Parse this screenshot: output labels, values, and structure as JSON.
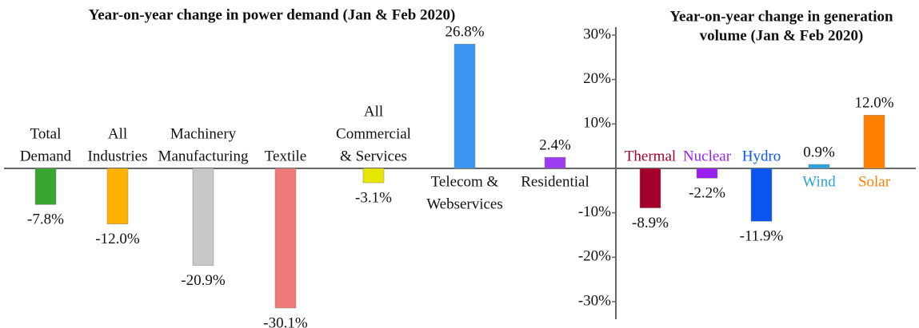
{
  "chart_data": [
    {
      "type": "bar",
      "title": [
        "Year-on-year change in power demand (Jan & Feb 2020)"
      ],
      "categories": [
        [
          "Total",
          "Demand"
        ],
        [
          "All",
          "Industries"
        ],
        [
          "Machinery",
          "Manufacturing"
        ],
        [
          "Textile"
        ],
        [
          "All",
          "Commercial",
          "& Services"
        ],
        [
          "Telecom &",
          "Webservices"
        ],
        [
          "Residential"
        ]
      ],
      "values": [
        -7.8,
        -12.0,
        -20.9,
        -30.1,
        -3.1,
        26.8,
        2.4
      ],
      "value_labels": [
        "-7.8%",
        "-12.0%",
        "-20.9%",
        "-30.1%",
        "-3.1%",
        "26.8%",
        "2.4%"
      ],
      "colors": [
        "#3aa632",
        "#ffb300",
        "#c8c8c8",
        "#f07a7a",
        "#e6e600",
        "#3b95f0",
        "#9b3cf0"
      ]
    },
    {
      "type": "bar",
      "title": [
        "Year-on-year change in generation",
        "volume (Jan & Feb 2020)"
      ],
      "categories": [
        [
          "Thermal"
        ],
        [
          "Nuclear"
        ],
        [
          "Hydro"
        ],
        [
          "Wind"
        ],
        [
          "Solar"
        ]
      ],
      "values": [
        -8.9,
        -2.2,
        -11.9,
        0.9,
        12.0
      ],
      "value_labels": [
        "-8.9%",
        "-2.2%",
        "-11.9%",
        "0.9%",
        "12.0%"
      ],
      "colors": [
        "#a3002b",
        "#9b1ff0",
        "#0a55f0",
        "#2aa3dc",
        "#ff7f00"
      ],
      "ylim": [
        -30,
        30
      ],
      "yticks": [
        {
          "value": 30,
          "label": "30%"
        },
        {
          "value": 20,
          "label": "20%"
        },
        {
          "value": 10,
          "label": "10%"
        },
        {
          "value": 0,
          "label": ""
        },
        {
          "value": -10,
          "label": "-10%"
        },
        {
          "value": -20,
          "label": "-20%"
        },
        {
          "value": -30,
          "label": "-30%"
        }
      ]
    }
  ]
}
